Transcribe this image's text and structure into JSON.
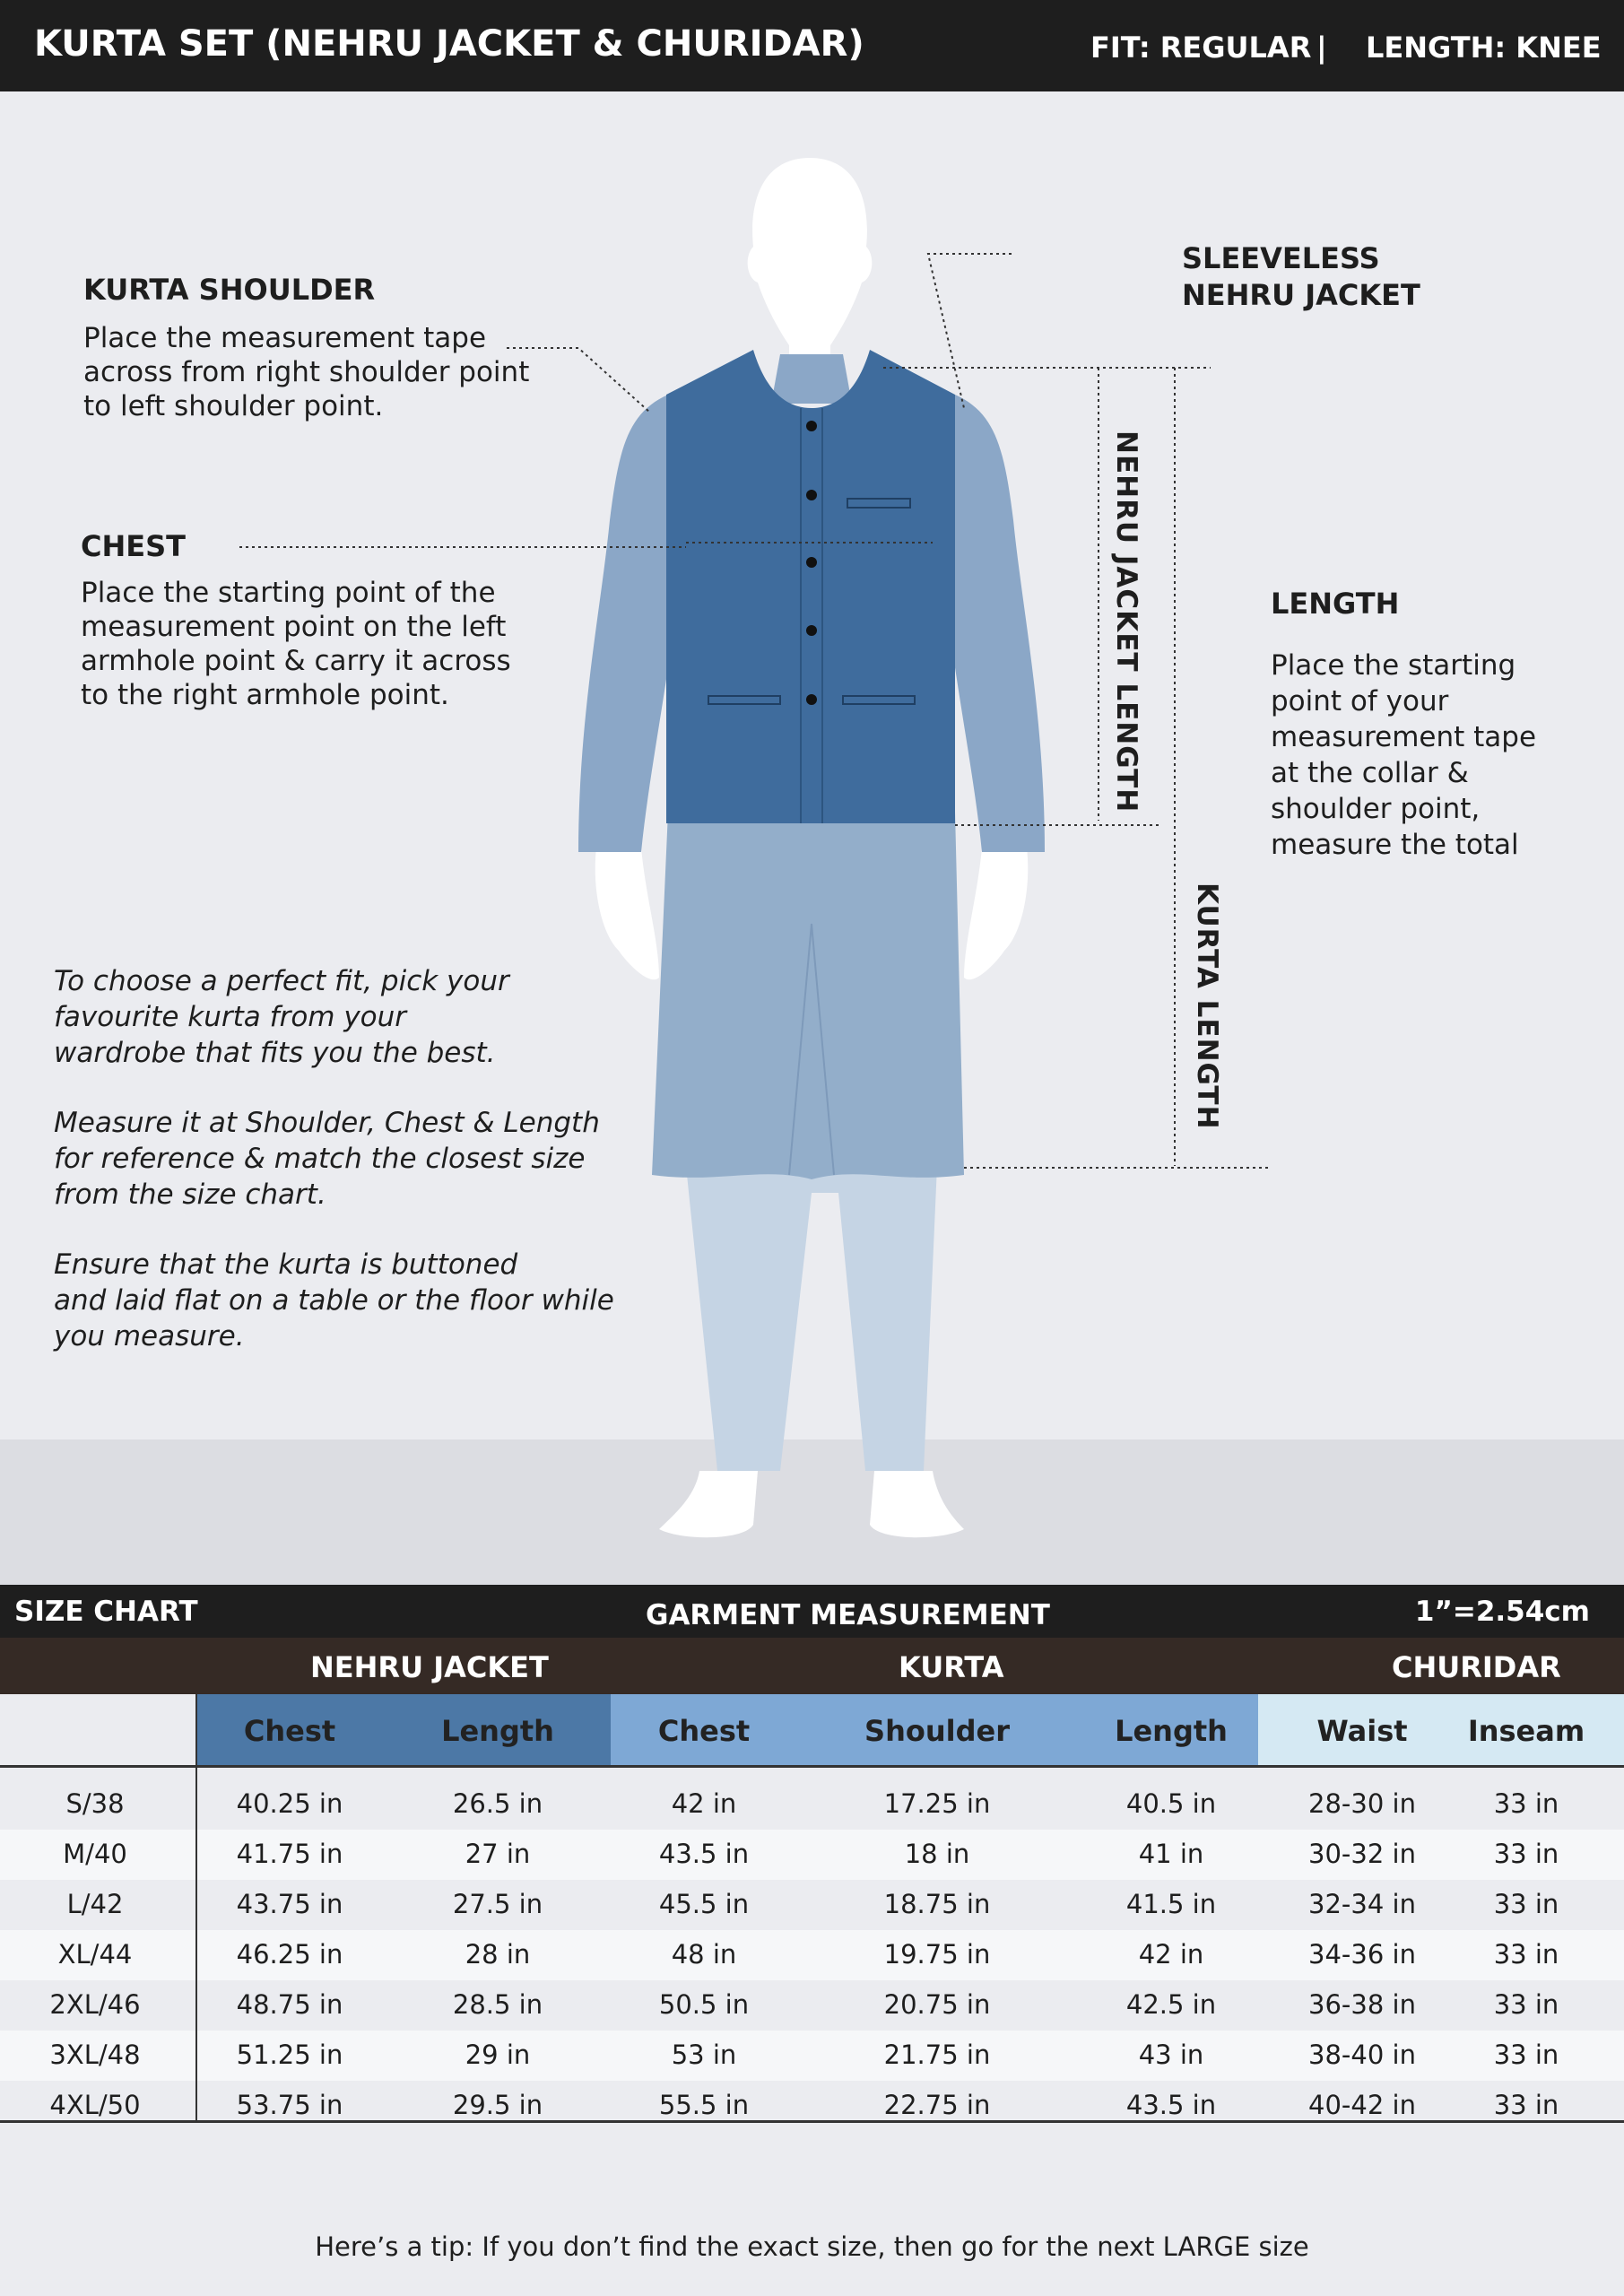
{
  "header": {
    "title": "KURTA SET (NEHRU JACKET & CHURIDAR)",
    "fit": "FIT: REGULAR",
    "separator": "|",
    "length": "LENGTH: KNEE"
  },
  "guide": {
    "shoulder": {
      "title": "KURTA SHOULDER",
      "text": [
        "Place the measurement tape",
        "across from right shoulder point",
        "to left shoulder point."
      ]
    },
    "chest": {
      "title": "CHEST",
      "text": [
        "Place the starting point of the",
        "measurement point on the left",
        "armhole point & carry it across",
        "to the right armhole point."
      ]
    },
    "jacket": {
      "title": [
        "SLEEVELESS",
        "NEHRU JACKET"
      ]
    },
    "length": {
      "title": "LENGTH",
      "text": [
        "Place the starting",
        "point of your",
        "measurement tape",
        "at the collar &",
        "shoulder point,",
        "measure the total"
      ]
    },
    "jacket_length_label": "NEHRU JACKET LENGTH",
    "kurta_length_label": "KURTA LENGTH",
    "tips": [
      [
        "To choose a perfect fit, pick your",
        "favourite kurta from your",
        "wardrobe that fits you the best."
      ],
      [
        "Measure it at Shoulder, Chest & Length",
        "for reference & match the closest size",
        "from the size chart."
      ],
      [
        "Ensure that the kurta is buttoned",
        "and laid flat on a table or the floor while",
        "you measure."
      ]
    ]
  },
  "colors": {
    "jacket": "#3f6c9d",
    "sleeve": "#8ba7c7",
    "kurta": "#93aeca",
    "churidar": "#c5d4e4",
    "jacket_header": "#4c78a6",
    "kurta_header": "#7ea8d5",
    "churidar_header": "#d5e9f3"
  },
  "table": {
    "label": "SIZE CHART",
    "title": "GARMENT MEASUREMENT",
    "conversion": "1”=2.54cm",
    "groups": [
      "NEHRU JACKET",
      "KURTA",
      "CHURIDAR"
    ],
    "columns": [
      "Chest",
      "Length",
      "Chest",
      "Shoulder",
      "Length",
      "Waist",
      "Inseam"
    ],
    "rows": [
      [
        "S/38",
        "40.25 in",
        "26.5 in",
        "42 in",
        "17.25 in",
        "40.5 in",
        "28-30 in",
        "33 in"
      ],
      [
        "M/40",
        "41.75 in",
        "27 in",
        "43.5 in",
        "18 in",
        "41 in",
        "30-32 in",
        "33 in"
      ],
      [
        "L/42",
        "43.75 in",
        "27.5 in",
        "45.5 in",
        "18.75 in",
        "41.5 in",
        "32-34 in",
        "33 in"
      ],
      [
        "XL/44",
        "46.25 in",
        "28 in",
        "48 in",
        "19.75 in",
        "42 in",
        "34-36 in",
        "33 in"
      ],
      [
        "2XL/46",
        "48.75 in",
        "28.5 in",
        "50.5 in",
        "20.75 in",
        "42.5 in",
        "36-38 in",
        "33 in"
      ],
      [
        "3XL/48",
        "51.25 in",
        "29 in",
        "53 in",
        "21.75 in",
        "43 in",
        "38-40 in",
        "33 in"
      ],
      [
        "4XL/50",
        "53.75 in",
        "29.5 in",
        "55.5 in",
        "22.75 in",
        "43.5 in",
        "40-42 in",
        "33 in"
      ]
    ]
  },
  "tip": "Here’s a tip: If you don’t find the exact size, then go for the next LARGE size"
}
